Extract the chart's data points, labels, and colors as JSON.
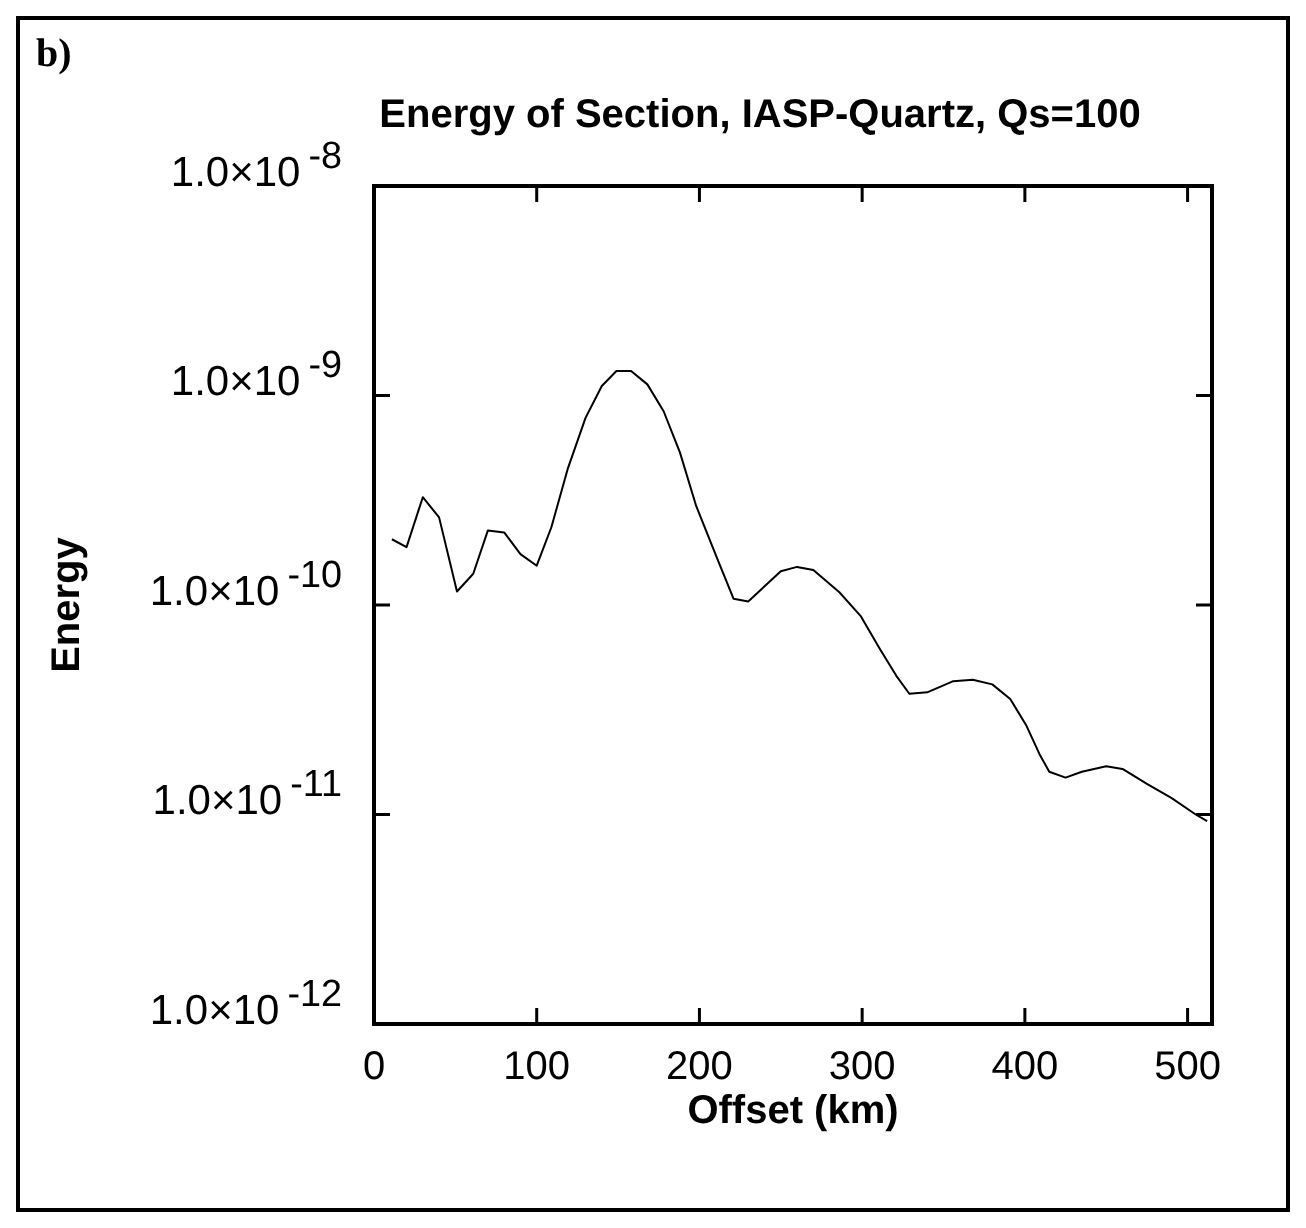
{
  "chart_data": {
    "type": "line",
    "title": "Energy of Section, IASP-Quartz, Qs=100",
    "xlabel": "Offset (km)",
    "ylabel": "Energy",
    "annotations": [
      "b)"
    ],
    "log": "y",
    "grid": false,
    "legend": false,
    "marker": "none",
    "line_style": "solid",
    "xlim": [
      0,
      515
    ],
    "xticks": [
      0,
      100,
      200,
      300,
      400,
      500
    ],
    "ylim": [
      1e-12,
      1e-08
    ],
    "yticks": [
      {
        "value": 1e-08,
        "label": "1.0×10$^{-8}$"
      },
      {
        "value": 1e-09,
        "label": "1.0×10$^{-9}$"
      },
      {
        "value": 1e-10,
        "label": "1.0×10$^{-10}$"
      },
      {
        "value": 1e-11,
        "label": "1.0×10$^{-11}$"
      },
      {
        "value": 1e-12,
        "label": "1.0×10$^{-12}$"
      }
    ],
    "series": [
      {
        "color": "#000000",
        "x": [
          11,
          20,
          30,
          40,
          51,
          61,
          70,
          80,
          90,
          100,
          109,
          119,
          130,
          140,
          149,
          158,
          168,
          178,
          188,
          198,
          211,
          221,
          230,
          250,
          260,
          270,
          286,
          299,
          311,
          321,
          329,
          340,
          356,
          368,
          380,
          391,
          401,
          409,
          415,
          425,
          435,
          450,
          460,
          475,
          490,
          505,
          512
        ],
        "values": [
          2.06e-10,
          1.89e-10,
          3.27e-10,
          2.62e-10,
          1.16e-10,
          1.41e-10,
          2.27e-10,
          2.22e-10,
          1.75e-10,
          1.54e-10,
          2.35e-10,
          4.45e-10,
          7.82e-10,
          1.11e-09,
          1.31e-09,
          1.31e-09,
          1.13e-09,
          8.41e-10,
          5.35e-10,
          2.97e-10,
          1.66e-10,
          1.07e-10,
          1.04e-10,
          1.45e-10,
          1.52e-10,
          1.47e-10,
          1.15e-10,
          8.88e-11,
          6.15e-11,
          4.59e-11,
          3.77e-11,
          3.83e-11,
          4.33e-11,
          4.4e-11,
          4.18e-11,
          3.56e-11,
          2.65e-11,
          1.94e-11,
          1.6e-11,
          1.5e-11,
          1.6e-11,
          1.7e-11,
          1.65e-11,
          1.4e-11,
          1.2e-11,
          1e-11,
          9.3e-12
        ]
      }
    ]
  }
}
